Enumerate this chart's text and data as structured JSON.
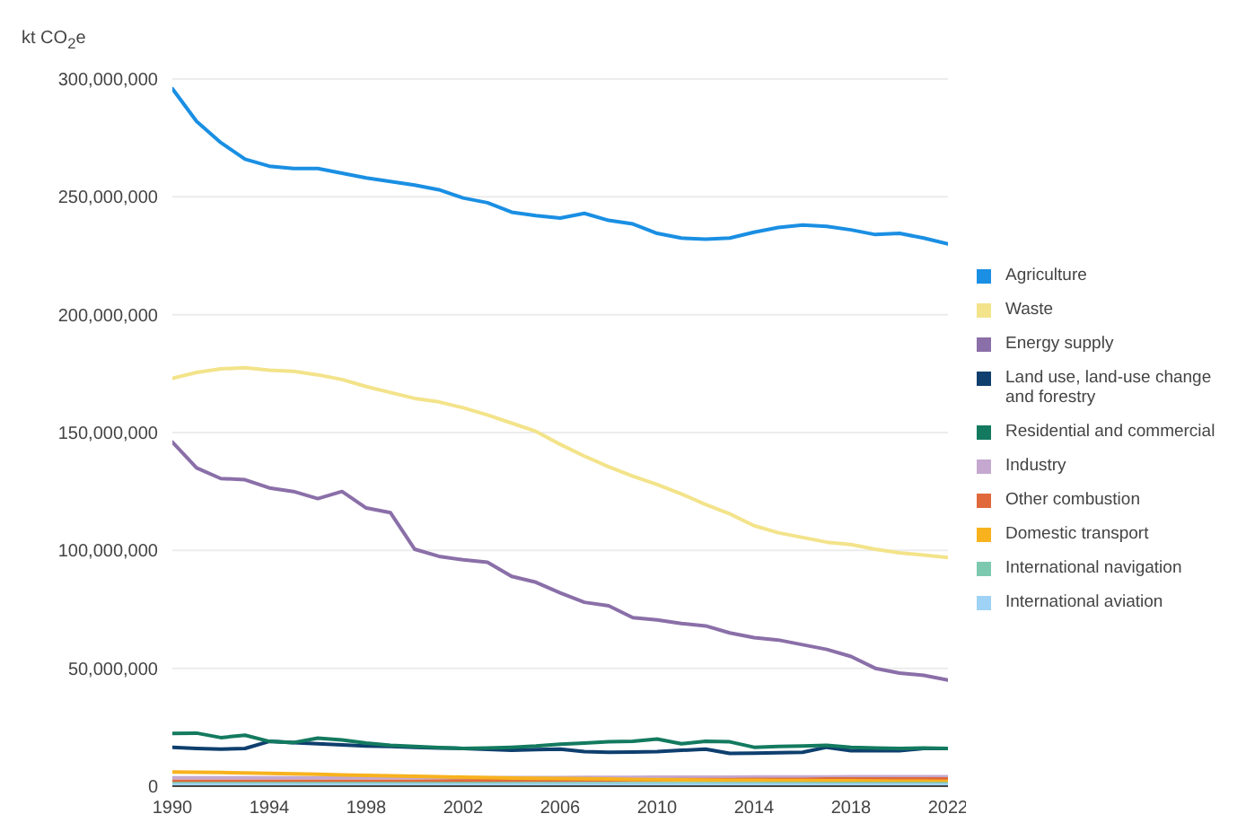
{
  "chart_data": {
    "type": "line",
    "ylabel": "kt CO$_{2}$e",
    "x": [
      1990,
      1991,
      1992,
      1993,
      1994,
      1995,
      1996,
      1997,
      1998,
      1999,
      2000,
      2001,
      2002,
      2003,
      2004,
      2005,
      2006,
      2007,
      2008,
      2009,
      2010,
      2011,
      2012,
      2013,
      2014,
      2015,
      2016,
      2017,
      2018,
      2019,
      2020,
      2021,
      2022
    ],
    "xlim": [
      1990,
      2022
    ],
    "xticks": [
      1990,
      1994,
      1998,
      2002,
      2006,
      2010,
      2014,
      2018,
      2022
    ],
    "ylim": [
      0,
      300000000
    ],
    "yticks": [
      0,
      {
        "value": 50000000,
        "label": "50,000,000"
      },
      {
        "value": 100000000,
        "label": "100,000,000"
      },
      {
        "value": 150000000,
        "label": "150,000,000"
      },
      {
        "value": 200000000,
        "label": "200,000,000"
      },
      {
        "value": 250000000,
        "label": "250,000,000"
      },
      {
        "value": 300000000,
        "label": "300,000,000"
      }
    ],
    "grid": "y",
    "legend": "right",
    "marker": "none",
    "line_style": "solid",
    "series": [
      {
        "name": "Agriculture",
        "color": "#1a8fe3",
        "values": [
          295900000,
          282000000,
          273000000,
          266000000,
          263000000,
          262000000,
          262000000,
          260000000,
          258000000,
          256500000,
          255000000,
          253000000,
          249500000,
          247500000,
          243500000,
          242000000,
          241000000,
          243000000,
          240000000,
          238500000,
          234500000,
          232500000,
          232000000,
          232500000,
          235000000,
          237000000,
          238000000,
          237500000,
          236000000,
          234000000,
          234500000,
          232500000,
          230000000
        ]
      },
      {
        "name": "Waste",
        "color": "#f3e38a",
        "values": [
          173000000,
          175500000,
          177000000,
          177500000,
          176500000,
          176000000,
          174500000,
          172500000,
          169500000,
          167000000,
          164500000,
          163000000,
          160500000,
          157500000,
          154000000,
          150500000,
          145000000,
          140000000,
          135500000,
          131500000,
          128000000,
          124000000,
          119500000,
          115500000,
          110500000,
          107500000,
          105500000,
          103500000,
          102500000,
          100500000,
          99000000,
          98000000,
          97000000
        ]
      },
      {
        "name": "Energy supply",
        "color": "#8a6fa8",
        "values": [
          146000000,
          135000000,
          130500000,
          130000000,
          126500000,
          125000000,
          122000000,
          125000000,
          118000000,
          116000000,
          100500000,
          97500000,
          96000000,
          95000000,
          89000000,
          86500000,
          82000000,
          78000000,
          76500000,
          71500000,
          70500000,
          69000000,
          68000000,
          65000000,
          63000000,
          62000000,
          60000000,
          58000000,
          55000000,
          50000000,
          48000000,
          47000000,
          45000000
        ]
      },
      {
        "name": "Land use, land-use change and forestry",
        "color": "#0e3f6e",
        "values": [
          16500000,
          16000000,
          15700000,
          16000000,
          19000000,
          18500000,
          18000000,
          17500000,
          17000000,
          16800000,
          16500000,
          16200000,
          16000000,
          15600000,
          15200000,
          15500000,
          15700000,
          14700000,
          14400000,
          14500000,
          14700000,
          15200000,
          15700000,
          13900000,
          14000000,
          14200000,
          14400000,
          16500000,
          15000000,
          15000000,
          15000000,
          16000000,
          16000000
        ]
      },
      {
        "name": "Residential and commercial",
        "color": "#137a5f",
        "values": [
          22400000,
          22500000,
          20600000,
          21600000,
          19000000,
          18500000,
          20400000,
          19600000,
          18300000,
          17300000,
          16800000,
          16400000,
          16000000,
          16200000,
          16500000,
          17000000,
          17800000,
          18300000,
          18800000,
          19000000,
          20000000,
          18000000,
          19000000,
          18800000,
          16500000,
          16800000,
          17000000,
          17300000,
          16500000,
          16200000,
          16000000,
          16200000,
          16000000
        ]
      },
      {
        "name": "Industry",
        "color": "#c4a8d0",
        "values": [
          3500000,
          3500000,
          3500000,
          3500000,
          3500000,
          3500000,
          3500000,
          3500000,
          3500000,
          3500000,
          3500000,
          3500000,
          3500000,
          3500000,
          3600000,
          3600000,
          3600000,
          3700000,
          3700000,
          3700000,
          3800000,
          3800000,
          3800000,
          3800000,
          3900000,
          3900000,
          3900000,
          3900000,
          4000000,
          4000000,
          4000000,
          4000000,
          4000000
        ]
      },
      {
        "name": "Other combustion",
        "color": "#e0683a",
        "values": [
          2000000,
          2000000,
          2000000,
          2000000,
          2000000,
          2000000,
          2000000,
          2000000,
          2000000,
          2000000,
          2000000,
          2100000,
          2200000,
          2300000,
          2400000,
          2500000,
          2500000,
          2600000,
          2600000,
          2700000,
          2700000,
          2800000,
          2800000,
          2800000,
          2900000,
          2900000,
          2900000,
          3000000,
          3000000,
          3000000,
          3000000,
          3000000,
          3000000
        ]
      },
      {
        "name": "Domestic transport",
        "color": "#f7b21e",
        "values": [
          6000000,
          5900000,
          5800000,
          5600000,
          5400000,
          5200000,
          5000000,
          4800000,
          4600000,
          4400000,
          4200000,
          4000000,
          3800000,
          3600000,
          3400000,
          3300000,
          3200000,
          3100000,
          3000000,
          2900000,
          2800000,
          2700000,
          2600000,
          2500000,
          2500000,
          2400000,
          2400000,
          2300000,
          2300000,
          2200000,
          2100000,
          2100000,
          2000000
        ]
      },
      {
        "name": "International navigation",
        "color": "#7cc9b0",
        "values": [
          1000000,
          1000000,
          1000000,
          1000000,
          1000000,
          1000000,
          1000000,
          1000000,
          1000000,
          1000000,
          1000000,
          1000000,
          1000000,
          1000000,
          1000000,
          1000000,
          1000000,
          1000000,
          1000000,
          1000000,
          1000000,
          1000000,
          1000000,
          1000000,
          1000000,
          1000000,
          1000000,
          1000000,
          1000000,
          1000000,
          1000000,
          1000000,
          1000000
        ]
      },
      {
        "name": "International aviation",
        "color": "#9fd3f5",
        "values": [
          500000,
          500000,
          500000,
          500000,
          500000,
          500000,
          500000,
          500000,
          500000,
          500000,
          500000,
          500000,
          500000,
          500000,
          500000,
          500000,
          500000,
          500000,
          500000,
          500000,
          500000,
          500000,
          500000,
          500000,
          500000,
          500000,
          500000,
          500000,
          500000,
          500000,
          500000,
          500000,
          500000
        ]
      }
    ]
  }
}
